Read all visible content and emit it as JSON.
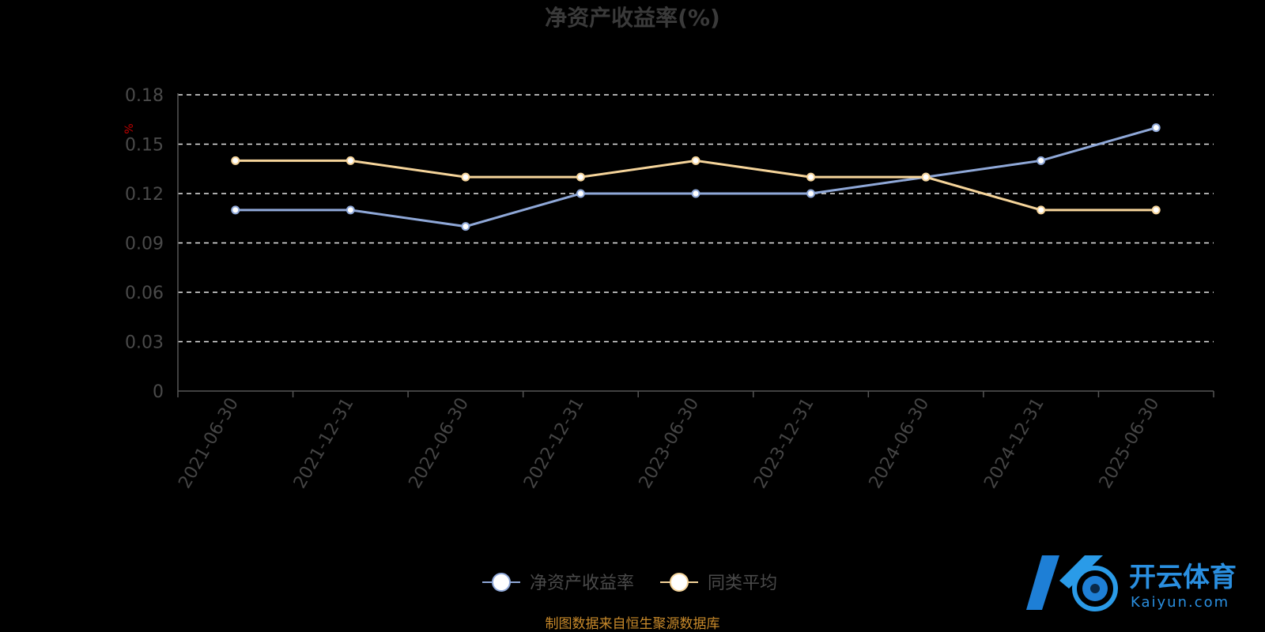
{
  "chart_data": {
    "type": "line",
    "title": "净资产收益率(%)",
    "unit_label": "%",
    "categories": [
      "2021-06-30",
      "2021-12-31",
      "2022-06-30",
      "2022-12-31",
      "2023-06-30",
      "2023-12-31",
      "2024-06-30",
      "2024-12-31",
      "2025-06-30"
    ],
    "series": [
      {
        "name": "净资产收益率",
        "values": [
          0.11,
          0.11,
          0.1,
          0.12,
          0.12,
          0.12,
          0.13,
          0.14,
          0.16
        ],
        "color": "#8fa8d8"
      },
      {
        "name": "同类平均",
        "values": [
          0.14,
          0.14,
          0.13,
          0.13,
          0.14,
          0.13,
          0.13,
          0.11,
          0.11
        ],
        "color": "#f5d49a"
      }
    ],
    "yticks": [
      "0",
      "0.03",
      "0.06",
      "0.09",
      "0.12",
      "0.15",
      "0.18"
    ],
    "ylim": [
      0,
      0.18
    ],
    "grid": true,
    "legend_position": "bottom-center"
  },
  "source_note": "制图数据来自恒生聚源数据库",
  "logo": {
    "cn": "开云体育",
    "en": "Kaiyun.com"
  }
}
